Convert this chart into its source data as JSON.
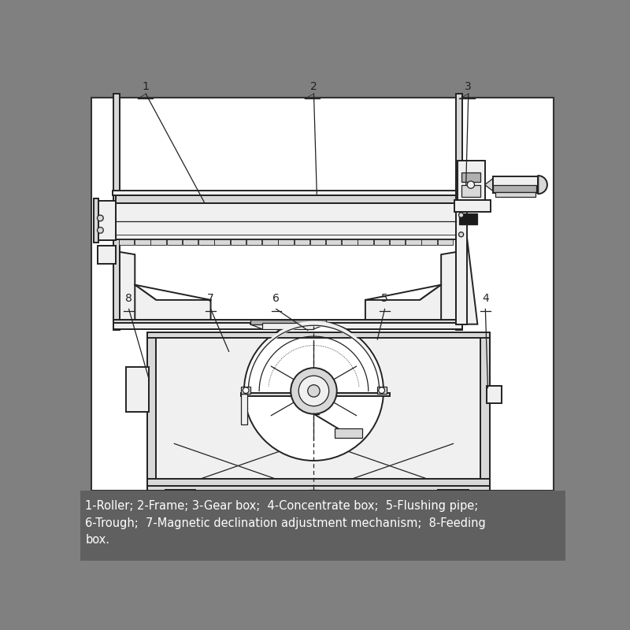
{
  "bg_color": "#808080",
  "panel_bg": "#ffffff",
  "panel_border": "#333333",
  "legend_bg": "#606060",
  "lc": "#222222",
  "lc_dark": "#111111",
  "fc_light": "#f0f0f0",
  "fc_mid": "#d8d8d8",
  "fc_dark": "#b0b0b0",
  "fc_black": "#1a1a1a",
  "legend_text_line1": "1-Roller; 2-Frame; 3-Gear box;  4-Concentrate box;  5-Flushing pipe;",
  "legend_text_line2": "6-Trough;  7-Magnetic declination adjustment mechanism;  8-Feeding",
  "legend_text_line3": "box."
}
